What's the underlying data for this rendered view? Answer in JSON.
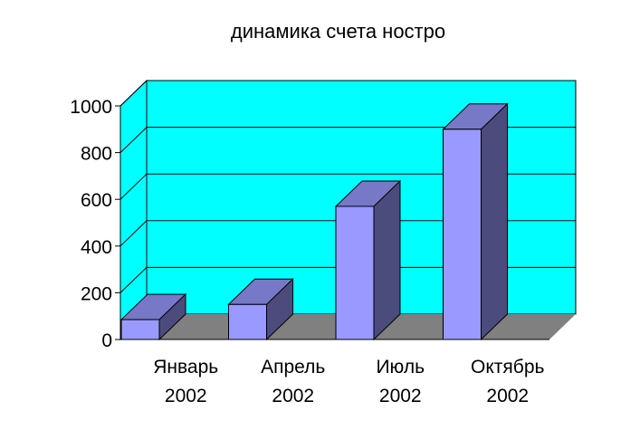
{
  "chart_data": {
    "type": "bar",
    "title": "динамика счета ностро",
    "xlabel": "",
    "ylabel": "",
    "ylim": [
      0,
      1000
    ],
    "yticks": [
      "0",
      "200",
      "400",
      "600",
      "800",
      "1000"
    ],
    "categories": [
      [
        "Январь",
        "2002"
      ],
      [
        "Апрель",
        "2002"
      ],
      [
        "Июль",
        "2002"
      ],
      [
        "Октябрь",
        "2002"
      ]
    ],
    "values": [
      85,
      150,
      570,
      900
    ],
    "grid": true,
    "three_d": true,
    "colors": {
      "wall": "#00ffff",
      "floor": "#808080",
      "bar_front": "#9999ff",
      "bar_top": "#7878c8",
      "bar_side": "#4b4b7c"
    }
  }
}
